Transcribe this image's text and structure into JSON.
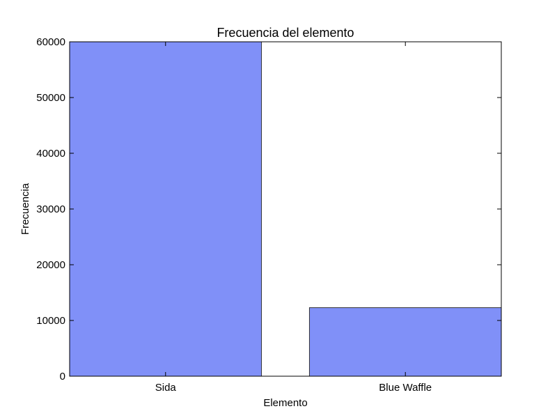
{
  "chart_data": {
    "type": "bar",
    "title": "Frecuencia del elemento",
    "xlabel": "Elemento",
    "ylabel": "Frecuencia",
    "categories": [
      "Sida",
      "Blue Waffle"
    ],
    "values": [
      60000,
      12300
    ],
    "ylim": [
      0,
      60000
    ],
    "yticks": [
      0,
      10000,
      20000,
      30000,
      40000,
      50000,
      60000
    ],
    "grid": false,
    "bar_color": "#8090f8",
    "edge_color": "#333333"
  }
}
